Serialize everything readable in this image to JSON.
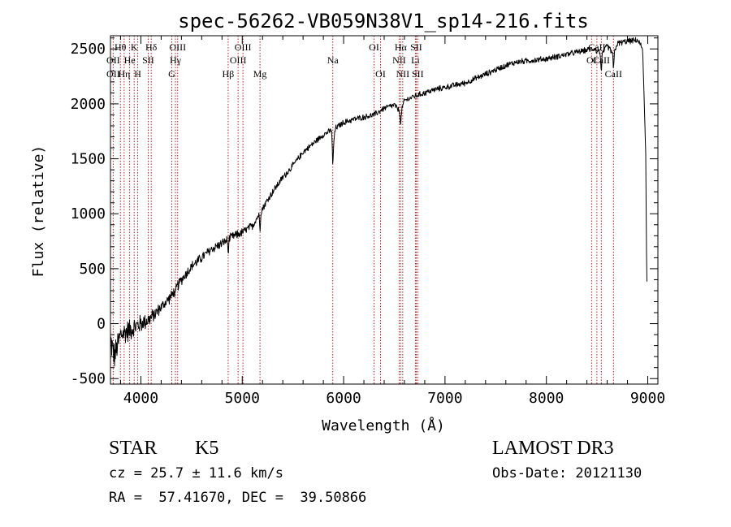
{
  "chart_data": {
    "type": "line",
    "title": "spec-56262-VB059N38V1_sp14-216.fits",
    "xlabel": "Wavelength (Å)",
    "ylabel": "Flux (relative)",
    "xlim": [
      3700,
      9100
    ],
    "ylim": [
      -550,
      2620
    ],
    "x_ticks": [
      4000,
      5000,
      6000,
      7000,
      8000,
      9000
    ],
    "y_ticks": [
      -500,
      0,
      500,
      1000,
      1500,
      2000,
      2500
    ],
    "series": [
      {
        "name": "spectrum",
        "anchors": [
          [
            3700,
            -150
          ],
          [
            3740,
            -300
          ],
          [
            3800,
            -100
          ],
          [
            3900,
            -50
          ],
          [
            4000,
            0
          ],
          [
            4100,
            50
          ],
          [
            4200,
            150
          ],
          [
            4300,
            250
          ],
          [
            4400,
            400
          ],
          [
            4500,
            520
          ],
          [
            4600,
            600
          ],
          [
            4700,
            680
          ],
          [
            4800,
            730
          ],
          [
            4900,
            790
          ],
          [
            5000,
            830
          ],
          [
            5100,
            890
          ],
          [
            5200,
            1050
          ],
          [
            5300,
            1200
          ],
          [
            5400,
            1330
          ],
          [
            5500,
            1440
          ],
          [
            5600,
            1560
          ],
          [
            5700,
            1640
          ],
          [
            5800,
            1720
          ],
          [
            5880,
            1760
          ],
          [
            5900,
            1650
          ],
          [
            5920,
            1780
          ],
          [
            6000,
            1830
          ],
          [
            6100,
            1860
          ],
          [
            6200,
            1880
          ],
          [
            6300,
            1900
          ],
          [
            6400,
            1960
          ],
          [
            6500,
            1990
          ],
          [
            6563,
            1920
          ],
          [
            6600,
            2030
          ],
          [
            6700,
            2070
          ],
          [
            6800,
            2100
          ],
          [
            6900,
            2130
          ],
          [
            7000,
            2150
          ],
          [
            7100,
            2170
          ],
          [
            7200,
            2190
          ],
          [
            7300,
            2230
          ],
          [
            7400,
            2270
          ],
          [
            7500,
            2310
          ],
          [
            7600,
            2350
          ],
          [
            7700,
            2380
          ],
          [
            7800,
            2390
          ],
          [
            7900,
            2400
          ],
          [
            8000,
            2410
          ],
          [
            8100,
            2430
          ],
          [
            8200,
            2450
          ],
          [
            8300,
            2470
          ],
          [
            8400,
            2490
          ],
          [
            8500,
            2510
          ],
          [
            8542,
            2440
          ],
          [
            8600,
            2530
          ],
          [
            8662,
            2450
          ],
          [
            8700,
            2550
          ],
          [
            8800,
            2570
          ],
          [
            8900,
            2580
          ],
          [
            8950,
            2500
          ],
          [
            8980,
            1550
          ],
          [
            8990,
            400
          ],
          [
            9000,
            300
          ]
        ],
        "absorption_dips": [
          [
            4340,
            60
          ],
          [
            4861,
            120
          ],
          [
            5175,
            150
          ],
          [
            5893,
            250
          ],
          [
            6563,
            120
          ],
          [
            8498,
            60
          ],
          [
            8542,
            150
          ],
          [
            8662,
            140
          ]
        ],
        "noise_model": "amplitude decreasing from about 150 at 3700 to about 30 redward of 5500"
      }
    ],
    "lines": [
      {
        "label": "Hθ",
        "wl": 3798,
        "row": 1
      },
      {
        "label": "OII",
        "wl": 3727,
        "row": 2
      },
      {
        "label": "OII",
        "wl": 3727,
        "row": 3
      },
      {
        "label": "Hη",
        "wl": 3835,
        "row": 3
      },
      {
        "label": "He",
        "wl": 3889,
        "row": 2
      },
      {
        "label": "K",
        "wl": 3934,
        "row": 1
      },
      {
        "label": "H",
        "wl": 3969,
        "row": 3
      },
      {
        "label": "Hδ",
        "wl": 4102,
        "row": 1
      },
      {
        "label": "SII",
        "wl": 4072,
        "row": 2
      },
      {
        "label": "OIII",
        "wl": 4363,
        "row": 1
      },
      {
        "label": "Hγ",
        "wl": 4341,
        "row": 2
      },
      {
        "label": "G",
        "wl": 4305,
        "row": 3
      },
      {
        "label": "Hβ",
        "wl": 4861,
        "row": 3
      },
      {
        "label": "OIII",
        "wl": 4959,
        "row": 2
      },
      {
        "label": "OIII",
        "wl": 5007,
        "row": 1
      },
      {
        "label": "Mg",
        "wl": 5175,
        "row": 3
      },
      {
        "label": "Na",
        "wl": 5893,
        "row": 2
      },
      {
        "label": "OI",
        "wl": 6300,
        "row": 1
      },
      {
        "label": "OI",
        "wl": 6364,
        "row": 3
      },
      {
        "label": "Hα",
        "wl": 6563,
        "row": 1
      },
      {
        "label": "NII",
        "wl": 6548,
        "row": 2
      },
      {
        "label": "NII",
        "wl": 6583,
        "row": 3
      },
      {
        "label": "SII",
        "wl": 6716,
        "row": 1
      },
      {
        "label": "Li",
        "wl": 6708,
        "row": 2
      },
      {
        "label": "SII",
        "wl": 6731,
        "row": 3
      },
      {
        "label": "CaII",
        "wl": 8498,
        "row": 1
      },
      {
        "label": "OI",
        "wl": 8446,
        "row": 2
      },
      {
        "label": "CaII",
        "wl": 8542,
        "row": 2
      },
      {
        "label": "CaII",
        "wl": 8662,
        "row": 3
      }
    ]
  },
  "info": {
    "class_label": "STAR",
    "subclass": "K5",
    "survey": "LAMOST DR3",
    "cz": "cz = 25.7 ± 11.6 km/s",
    "obs_date": "Obs-Date: 20121130",
    "coords": "RA =  57.41670, DEC =  39.50866"
  },
  "colors": {
    "axes": "#000000",
    "spectrum": "#000000",
    "line_markers": "#b22222",
    "background": "#ffffff"
  }
}
